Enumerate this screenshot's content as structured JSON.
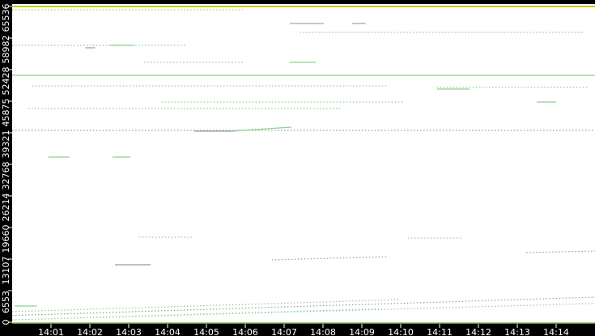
{
  "chart_data": {
    "type": "scatter",
    "title": "",
    "xlabel": "",
    "ylabel": "",
    "xlim": [
      "14:00:00",
      "14:15:00"
    ],
    "ylim": [
      0,
      65536
    ],
    "grid": false,
    "x_ticks": [
      "14:01",
      "14:02",
      "14:03",
      "14:04",
      "14:05",
      "14:06",
      "14:07",
      "14:08",
      "14:09",
      "14:10",
      "14:11",
      "14:12",
      "14:13",
      "14:14"
    ],
    "y_ticks": [
      0,
      6553,
      13107,
      19660,
      26214,
      32768,
      39321,
      45875,
      52428,
      58982,
      65536
    ],
    "colors": {
      "background": "#000000",
      "plot": "#ffffff",
      "points": "#8fd08f",
      "grey": "#9a9a9a",
      "top": "#c8c800",
      "axis": "#ffffff"
    },
    "segments": [
      {
        "t0": "14:00:00",
        "t1": "14:15:00",
        "p0": 65536,
        "p1": 65536,
        "style": "solid",
        "color": "top"
      },
      {
        "t0": "14:00:00",
        "t1": "14:05:56",
        "p0": 64864,
        "p1": 64864,
        "style": "dotted",
        "color": "points"
      },
      {
        "t0": "14:07:09",
        "t1": "14:08:01",
        "p0": 62000,
        "p1": 62000,
        "style": "solid",
        "color": "grey"
      },
      {
        "t0": "14:08:45",
        "t1": "14:09:06",
        "p0": 62000,
        "p1": 62000,
        "style": "solid",
        "color": "grey"
      },
      {
        "t0": "14:07:24",
        "t1": "14:14:41",
        "p0": 60160,
        "p1": 60160,
        "style": "dotted",
        "color": "points"
      },
      {
        "t0": "14:00:00",
        "t1": "14:04:29",
        "p0": 57470,
        "p1": 57470,
        "style": "dotted",
        "color": "points"
      },
      {
        "t0": "14:02:30",
        "t1": "14:03:08",
        "p0": 57470,
        "p1": 57470,
        "style": "solid",
        "color": "points"
      },
      {
        "t0": "14:01:53",
        "t1": "14:02:08",
        "p0": 56966,
        "p1": 56966,
        "style": "solid",
        "color": "grey"
      },
      {
        "t0": "14:03:24",
        "t1": "14:05:56",
        "p0": 53940,
        "p1": 53940,
        "style": "dotted",
        "color": "points"
      },
      {
        "t0": "14:07:08",
        "t1": "14:07:49",
        "p0": 53940,
        "p1": 53940,
        "style": "solid",
        "color": "points"
      },
      {
        "t0": "14:00:00",
        "t1": "14:15:00",
        "p0": 51253,
        "p1": 51253,
        "style": "solid",
        "color": "points"
      },
      {
        "t0": "14:00:31",
        "t1": "14:09:41",
        "p0": 49067,
        "p1": 49067,
        "style": "dotted",
        "color": "points"
      },
      {
        "t0": "14:10:56",
        "t1": "14:14:49",
        "p0": 48731,
        "p1": 48731,
        "style": "dotted",
        "color": "points"
      },
      {
        "t0": "14:10:56",
        "t1": "14:11:46",
        "p0": 48395,
        "p1": 48395,
        "style": "solid",
        "color": "points"
      },
      {
        "t0": "14:03:51",
        "t1": "14:10:06",
        "p0": 45707,
        "p1": 45707,
        "style": "dotted",
        "color": "points"
      },
      {
        "t0": "14:13:30",
        "t1": "14:14:00",
        "p0": 45707,
        "p1": 45707,
        "style": "solid",
        "color": "points"
      },
      {
        "t0": "14:00:25",
        "t1": "14:08:26",
        "p0": 44363,
        "p1": 44363,
        "style": "dotted",
        "color": "points"
      },
      {
        "t0": "14:00:00",
        "t1": "14:15:00",
        "p0": 39826,
        "p1": 39826,
        "style": "dotted",
        "color": "grey"
      },
      {
        "t0": "14:04:41",
        "t1": "14:05:44",
        "p0": 39658,
        "p1": 39658,
        "style": "solid",
        "color": "grey"
      },
      {
        "t0": "14:05:38",
        "t1": "14:07:11",
        "p0": 39658,
        "p1": 40498,
        "style": "solid",
        "color": "points"
      },
      {
        "t0": "14:00:56",
        "t1": "14:01:28",
        "p0": 34281,
        "p1": 34281,
        "style": "solid",
        "color": "points"
      },
      {
        "t0": "14:02:35",
        "t1": "14:03:03",
        "p0": 34281,
        "p1": 34281,
        "style": "solid",
        "color": "points"
      },
      {
        "t0": "14:03:16",
        "t1": "14:04:41",
        "p0": 17644,
        "p1": 17644,
        "style": "dotted",
        "color": "points"
      },
      {
        "t0": "14:10:11",
        "t1": "14:11:33",
        "p0": 17476,
        "p1": 17476,
        "style": "dotted",
        "color": "points"
      },
      {
        "t0": "14:02:39",
        "t1": "14:03:34",
        "p0": 11931,
        "p1": 11931,
        "style": "solid",
        "color": "grey"
      },
      {
        "t0": "14:06:41",
        "t1": "14:09:41",
        "p0": 12939,
        "p1": 13611,
        "style": "dotted",
        "color": "grey"
      },
      {
        "t0": "14:13:14",
        "t1": "14:15:00",
        "p0": 14451,
        "p1": 14787,
        "style": "dotted",
        "color": "grey"
      },
      {
        "t0": "14:00:04",
        "t1": "14:00:38",
        "p0": 3361,
        "p1": 3361,
        "style": "solid",
        "color": "points"
      },
      {
        "t0": "14:00:00",
        "t1": "14:15:00",
        "p0": 500,
        "p1": 3900,
        "style": "dotted",
        "color": "points"
      },
      {
        "t0": "14:00:00",
        "t1": "14:15:00",
        "p0": 1400,
        "p1": 5200,
        "style": "dotted",
        "color": "grey"
      },
      {
        "t0": "14:00:00",
        "t1": "14:10:00",
        "p0": 2200,
        "p1": 4700,
        "style": "dotted",
        "color": "points"
      },
      {
        "t0": "14:02:00",
        "t1": "14:09:30",
        "p0": 1000,
        "p1": 2800,
        "style": "dotted",
        "color": "points"
      }
    ]
  }
}
